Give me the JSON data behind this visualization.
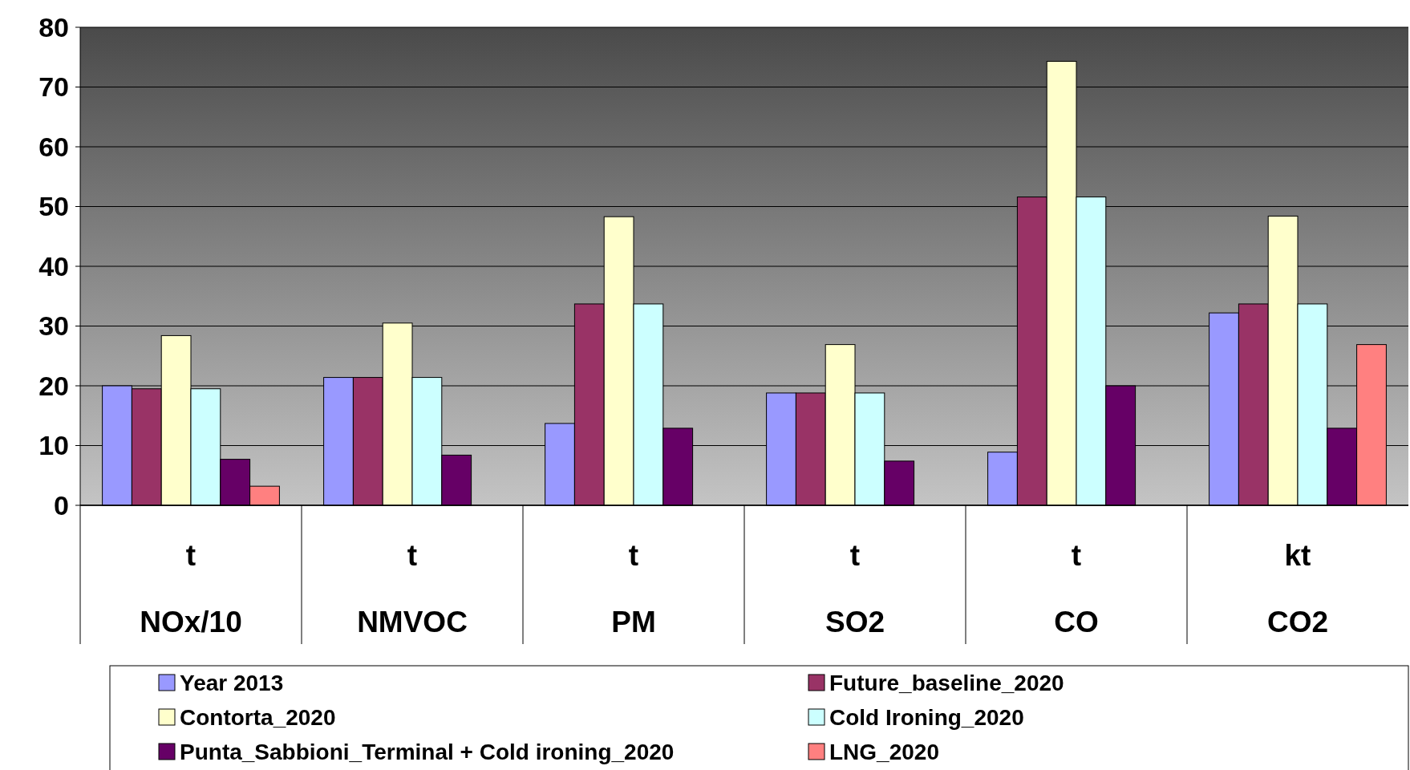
{
  "chart_data": {
    "type": "bar",
    "categories": [
      "t\nNOx/10",
      "t\nNMVOC",
      "t\nPM",
      "t\nSO2",
      "t\nCO",
      "kt\nCO2"
    ],
    "series": [
      {
        "name": "Year 2013",
        "color": "#9999ff",
        "values": [
          20.0,
          21.4,
          13.7,
          18.8,
          8.9,
          32.2
        ]
      },
      {
        "name": "Future_baseline_2020",
        "color": "#993366",
        "values": [
          19.5,
          21.4,
          33.7,
          18.8,
          51.6,
          33.7
        ]
      },
      {
        "name": "Contorta_2020",
        "color": "#ffffcc",
        "values": [
          28.4,
          30.5,
          48.3,
          26.9,
          74.3,
          48.4
        ]
      },
      {
        "name": "Cold Ironing_2020",
        "color": "#ccffff",
        "values": [
          19.5,
          21.4,
          33.7,
          18.8,
          51.6,
          33.7
        ]
      },
      {
        "name": "Punta_Sabbioni_Terminal + Cold ironing_2020",
        "color": "#660066",
        "values": [
          7.7,
          8.4,
          12.9,
          7.4,
          20.0,
          12.9
        ]
      },
      {
        "name": "LNG_2020",
        "color": "#ff8080",
        "values": [
          3.2,
          null,
          null,
          null,
          null,
          26.9
        ]
      }
    ],
    "ylim": [
      0,
      80
    ],
    "yticks": [
      0,
      10,
      20,
      30,
      40,
      50,
      60,
      70,
      80
    ],
    "grid": "y",
    "legend": "bottom"
  }
}
